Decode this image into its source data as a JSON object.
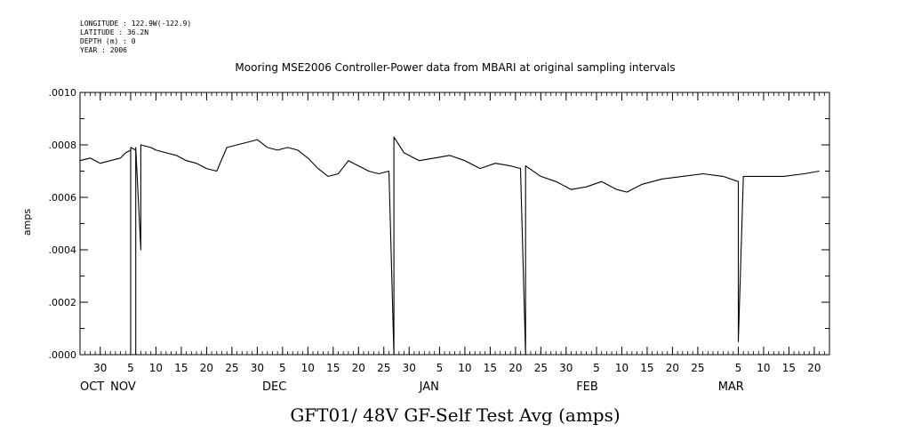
{
  "header": {
    "longitude": "LONGITUDE : 122.9W(-122.9)",
    "latitude": "LATITUDE : 36.2N",
    "depth": "DEPTH (m) : 0",
    "year": "YEAR : 2006"
  },
  "chart_data": {
    "type": "line",
    "title": "Mooring MSE2006 Controller-Power data from MBARI at original sampling intervals",
    "xlabel": "GFT01/ 48V GF-Self Test Avg (amps)",
    "ylabel": "amps",
    "ylim": [
      0,
      0.001
    ],
    "yticks": [
      0,
      0.0002,
      0.0004,
      0.0006,
      0.0008,
      0.001
    ],
    "ytick_labels": [
      ".0000",
      ".0002",
      ".0004",
      ".0006",
      ".0008",
      ".0010"
    ],
    "xlim": [
      "2006-10-26",
      "2007-03-23"
    ],
    "x_day_ticks": [
      {
        "date": "2006-10-30",
        "label": "30"
      },
      {
        "date": "2006-11-05",
        "label": "5"
      },
      {
        "date": "2006-11-10",
        "label": "10"
      },
      {
        "date": "2006-11-15",
        "label": "15"
      },
      {
        "date": "2006-11-20",
        "label": "20"
      },
      {
        "date": "2006-11-25",
        "label": "25"
      },
      {
        "date": "2006-11-30",
        "label": "30"
      },
      {
        "date": "2006-12-05",
        "label": "5"
      },
      {
        "date": "2006-12-10",
        "label": "10"
      },
      {
        "date": "2006-12-15",
        "label": "15"
      },
      {
        "date": "2006-12-20",
        "label": "20"
      },
      {
        "date": "2006-12-25",
        "label": "25"
      },
      {
        "date": "2006-12-30",
        "label": "30"
      },
      {
        "date": "2007-01-05",
        "label": "5"
      },
      {
        "date": "2007-01-10",
        "label": "10"
      },
      {
        "date": "2007-01-15",
        "label": "15"
      },
      {
        "date": "2007-01-20",
        "label": "20"
      },
      {
        "date": "2007-01-25",
        "label": "25"
      },
      {
        "date": "2007-01-30",
        "label": "30"
      },
      {
        "date": "2007-02-05",
        "label": "5"
      },
      {
        "date": "2007-02-10",
        "label": "10"
      },
      {
        "date": "2007-02-15",
        "label": "15"
      },
      {
        "date": "2007-02-20",
        "label": "20"
      },
      {
        "date": "2007-02-25",
        "label": "25"
      },
      {
        "date": "2007-03-05",
        "label": "5"
      },
      {
        "date": "2007-03-10",
        "label": "10"
      },
      {
        "date": "2007-03-15",
        "label": "15"
      },
      {
        "date": "2007-03-20",
        "label": "20"
      }
    ],
    "x_month_labels": [
      {
        "date": "2006-10-26",
        "label": "OCT"
      },
      {
        "date": "2006-11-01",
        "label": "NOV"
      },
      {
        "date": "2006-12-01",
        "label": "DEC"
      },
      {
        "date": "2007-01-01",
        "label": "JAN"
      },
      {
        "date": "2007-02-01",
        "label": "FEB"
      },
      {
        "date": "2007-03-01",
        "label": "MAR"
      }
    ],
    "series": [
      {
        "points": [
          [
            "2006-10-26",
            0.00074
          ],
          [
            "2006-10-28",
            0.00075
          ],
          [
            "2006-10-30",
            0.00073
          ],
          [
            "2006-11-01",
            0.00074
          ],
          [
            "2006-11-03",
            0.00075
          ],
          [
            "2006-11-04",
            0.00077
          ],
          [
            "2006-11-05",
            0.00078
          ],
          [
            "2006-11-05",
            0.0
          ],
          [
            "2006-11-05",
            0.00079
          ],
          [
            "2006-11-06",
            0.00078
          ],
          [
            "2006-11-06",
            0.0
          ],
          [
            "2006-11-06",
            0.00079
          ],
          [
            "2006-11-07",
            0.0004
          ],
          [
            "2006-11-07",
            0.0008
          ],
          [
            "2006-11-09",
            0.00079
          ],
          [
            "2006-11-10",
            0.00078
          ],
          [
            "2006-11-12",
            0.00077
          ],
          [
            "2006-11-14",
            0.00076
          ],
          [
            "2006-11-16",
            0.00074
          ],
          [
            "2006-11-18",
            0.00073
          ],
          [
            "2006-11-20",
            0.00071
          ],
          [
            "2006-11-22",
            0.0007
          ],
          [
            "2006-11-24",
            0.00079
          ],
          [
            "2006-11-26",
            0.0008
          ],
          [
            "2006-11-28",
            0.00081
          ],
          [
            "2006-11-30",
            0.00082
          ],
          [
            "2006-12-02",
            0.00079
          ],
          [
            "2006-12-04",
            0.00078
          ],
          [
            "2006-12-06",
            0.00079
          ],
          [
            "2006-12-08",
            0.00078
          ],
          [
            "2006-12-10",
            0.00075
          ],
          [
            "2006-12-12",
            0.00071
          ],
          [
            "2006-12-14",
            0.00068
          ],
          [
            "2006-12-16",
            0.00069
          ],
          [
            "2006-12-18",
            0.00074
          ],
          [
            "2006-12-20",
            0.00072
          ],
          [
            "2006-12-22",
            0.0007
          ],
          [
            "2006-12-24",
            0.00069
          ],
          [
            "2006-12-26",
            0.0007
          ],
          [
            "2006-12-27",
            0.0
          ],
          [
            "2006-12-27",
            0.00035
          ],
          [
            "2006-12-27",
            0.00083
          ],
          [
            "2006-12-29",
            0.00077
          ],
          [
            "2007-01-01",
            0.00074
          ],
          [
            "2007-01-04",
            0.00075
          ],
          [
            "2007-01-07",
            0.00076
          ],
          [
            "2007-01-10",
            0.00074
          ],
          [
            "2007-01-13",
            0.00071
          ],
          [
            "2007-01-16",
            0.00073
          ],
          [
            "2007-01-19",
            0.00072
          ],
          [
            "2007-01-21",
            0.00071
          ],
          [
            "2007-01-22",
            0.0
          ],
          [
            "2007-01-22",
            0.00038
          ],
          [
            "2007-01-22",
            0.00072
          ],
          [
            "2007-01-25",
            0.00068
          ],
          [
            "2007-01-28",
            0.00066
          ],
          [
            "2007-01-31",
            0.00063
          ],
          [
            "2007-02-03",
            0.00064
          ],
          [
            "2007-02-06",
            0.00066
          ],
          [
            "2007-02-09",
            0.00063
          ],
          [
            "2007-02-11",
            0.00062
          ],
          [
            "2007-02-14",
            0.00065
          ],
          [
            "2007-02-18",
            0.00067
          ],
          [
            "2007-02-22",
            0.00068
          ],
          [
            "2007-02-26",
            0.00069
          ],
          [
            "2007-03-02",
            0.00068
          ],
          [
            "2007-03-05",
            0.00066
          ],
          [
            "2007-03-05",
            5e-05
          ],
          [
            "2007-03-06",
            0.00068
          ],
          [
            "2007-03-10",
            0.00068
          ],
          [
            "2007-03-14",
            0.00068
          ],
          [
            "2007-03-18",
            0.00069
          ],
          [
            "2007-03-21",
            0.0007
          ]
        ]
      }
    ],
    "grid": false,
    "legend": "none"
  }
}
